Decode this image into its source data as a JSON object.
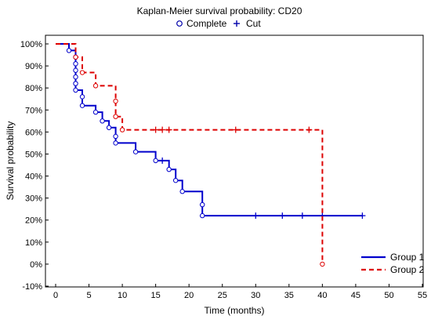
{
  "chart_data": {
    "type": "line",
    "title": "Kaplan-Meier survival probability: CD20",
    "xlabel": "Time (months)",
    "ylabel": "Survival probability",
    "xlim": [
      0,
      55
    ],
    "ylim": [
      -10,
      100
    ],
    "x_ticks": [
      0,
      5,
      10,
      15,
      20,
      25,
      30,
      35,
      40,
      45,
      50,
      55
    ],
    "y_ticks": [
      -10,
      0,
      10,
      20,
      30,
      40,
      50,
      60,
      70,
      80,
      90,
      100
    ],
    "y_tick_labels": [
      "-10%",
      "0%",
      "10%",
      "20%",
      "30%",
      "40%",
      "50%",
      "60%",
      "70%",
      "80%",
      "90%",
      "100%"
    ],
    "grid": false,
    "marker_legend": {
      "placement": "top",
      "items": [
        {
          "label": "Complete",
          "marker": "circle"
        },
        {
          "label": "Cut",
          "marker": "plus"
        }
      ]
    },
    "legend_placement": "bottom-right",
    "series": [
      {
        "name": "Group 1",
        "color": "#0000cc",
        "line_style": "solid",
        "steps": [
          [
            0,
            100
          ],
          [
            2,
            97
          ],
          [
            3,
            79
          ],
          [
            4,
            72
          ],
          [
            6,
            69
          ],
          [
            7,
            65
          ],
          [
            8,
            62
          ],
          [
            9,
            55
          ],
          [
            12,
            51
          ],
          [
            15,
            47
          ],
          [
            17,
            43
          ],
          [
            18,
            38
          ],
          [
            19,
            33
          ],
          [
            22,
            22
          ],
          [
            46,
            22
          ]
        ],
        "complete_events": [
          [
            2,
            97
          ],
          [
            3,
            94
          ],
          [
            3,
            91
          ],
          [
            3,
            88
          ],
          [
            3,
            85
          ],
          [
            3,
            82
          ],
          [
            3,
            79
          ],
          [
            4,
            76
          ],
          [
            4,
            72
          ],
          [
            6,
            69
          ],
          [
            7,
            65
          ],
          [
            8,
            62
          ],
          [
            9,
            58
          ],
          [
            9,
            55
          ],
          [
            12,
            51
          ],
          [
            15,
            47
          ],
          [
            17,
            43
          ],
          [
            18,
            38
          ],
          [
            19,
            33
          ],
          [
            22,
            27
          ],
          [
            22,
            22
          ]
        ],
        "censored": [
          [
            16,
            47
          ],
          [
            30,
            22
          ],
          [
            34,
            22
          ],
          [
            37,
            22
          ],
          [
            40,
            22
          ],
          [
            46,
            22
          ]
        ]
      },
      {
        "name": "Group 2",
        "color": "#dd0000",
        "line_style": "dashed",
        "steps": [
          [
            0,
            100
          ],
          [
            3,
            94
          ],
          [
            4,
            87
          ],
          [
            6,
            81
          ],
          [
            9,
            67
          ],
          [
            10,
            61
          ],
          [
            40,
            0
          ]
        ],
        "complete_events": [
          [
            3,
            94
          ],
          [
            4,
            87
          ],
          [
            6,
            81
          ],
          [
            9,
            74
          ],
          [
            9,
            67
          ],
          [
            10,
            61
          ],
          [
            40,
            0
          ]
        ],
        "censored": [
          [
            15,
            61
          ],
          [
            16,
            61
          ],
          [
            17,
            61
          ],
          [
            27,
            61
          ],
          [
            38,
            61
          ]
        ]
      }
    ]
  }
}
